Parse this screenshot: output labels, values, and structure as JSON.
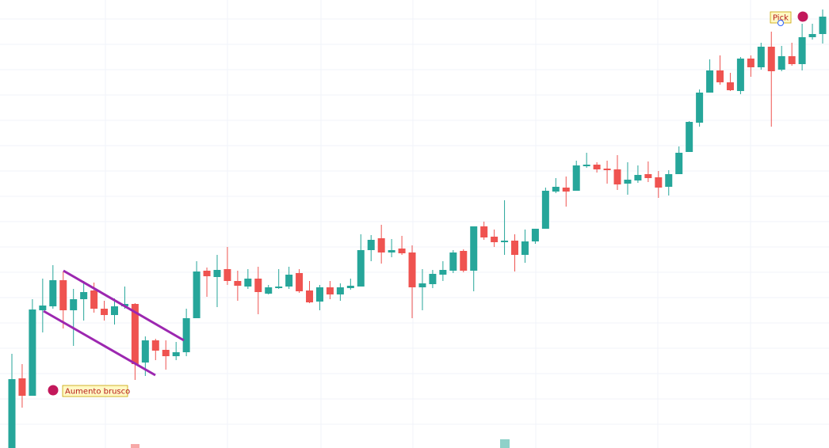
{
  "chart_data": {
    "type": "candlestick",
    "open": [
      0,
      88,
      66,
      174,
      179,
      212,
      174,
      188,
      199,
      176,
      168,
      179,
      182,
      108,
      136,
      124,
      116,
      121,
      164,
      224,
      216,
      226,
      211,
      204,
      214,
      195,
      202,
      204,
      221,
      199,
      185,
      203,
      194,
      202,
      204,
      250,
      265,
      247,
      252,
      247,
      203,
      207,
      219,
      224,
      249,
      224,
      280,
      267,
      260,
      262,
      244,
      261,
      277,
      324,
      329,
      325,
      356,
      358,
      353,
      352,
      334,
      338,
      346,
      342,
      330,
      346,
      374,
      411,
      449,
      477,
      462,
      451,
      492,
      481,
      507,
      478,
      495,
      485,
      519,
      523
    ],
    "high": [
      119,
      106,
      188,
      214,
      231,
      223,
      201,
      211,
      209,
      186,
      189,
      204,
      183,
      141,
      138,
      136,
      134,
      176,
      236,
      228,
      244,
      254,
      224,
      226,
      229,
      206,
      226,
      229,
      226,
      211,
      206,
      211,
      208,
      214,
      270,
      269,
      282,
      264,
      268,
      256,
      226,
      225,
      236,
      250,
      251,
      280,
      286,
      276,
      313,
      270,
      276,
      277,
      329,
      341,
      343,
      363,
      373,
      361,
      363,
      370,
      361,
      357,
      362,
      350,
      351,
      381,
      413,
      453,
      491,
      496,
      474,
      494,
      496,
      512,
      526,
      508,
      512,
      536,
      536,
      554
    ],
    "low": [
      0,
      51,
      66,
      146,
      176,
      151,
      129,
      161,
      171,
      161,
      156,
      176,
      86,
      91,
      111,
      99,
      111,
      116,
      164,
      191,
      178,
      206,
      186,
      201,
      169,
      194,
      201,
      201,
      196,
      183,
      174,
      188,
      186,
      200,
      204,
      236,
      233,
      241,
      244,
      164,
      174,
      202,
      211,
      221,
      222,
      198,
      263,
      254,
      244,
      223,
      234,
      258,
      277,
      322,
      305,
      325,
      354,
      348,
      334,
      326,
      320,
      335,
      336,
      316,
      319,
      346,
      374,
      406,
      449,
      459,
      451,
      447,
      469,
      478,
      406,
      476,
      483,
      477,
      516,
      511
    ],
    "close": [
      87,
      66,
      175,
      180,
      212,
      174,
      188,
      197,
      176,
      168,
      179,
      182,
      106,
      136,
      123,
      116,
      121,
      164,
      223,
      217,
      225,
      211,
      205,
      214,
      197,
      203,
      204,
      219,
      198,
      184,
      203,
      194,
      203,
      205,
      250,
      263,
      247,
      250,
      246,
      203,
      208,
      220,
      225,
      247,
      224,
      280,
      266,
      260,
      262,
      244,
      261,
      277,
      325,
      330,
      324,
      357,
      358,
      352,
      351,
      333,
      339,
      345,
      341,
      329,
      346,
      373,
      412,
      449,
      477,
      462,
      452,
      492,
      481,
      507,
      476,
      495,
      485,
      519,
      523,
      545
    ],
    "up_color": "#26a69a",
    "down_color": "#ef5350",
    "ylim": [
      0,
      566
    ],
    "annotations": [
      "Aumento brusco",
      "Pick"
    ]
  }
}
